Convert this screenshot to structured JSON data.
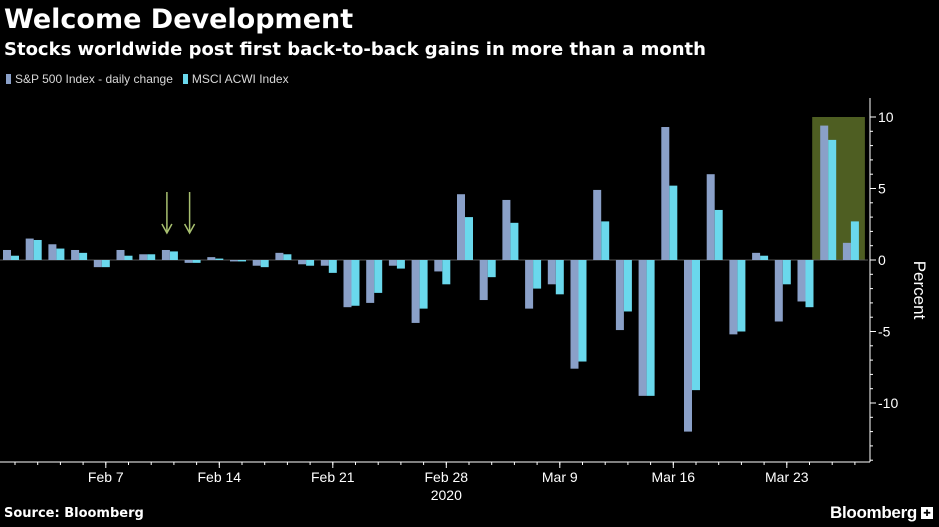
{
  "header": {
    "title": "Welcome Development",
    "subtitle": "Stocks worldwide post first back-to-back gains in more than a month"
  },
  "footer": {
    "source": "Source: Bloomberg",
    "brand": "Bloomberg"
  },
  "colors": {
    "background": "#000000",
    "sp500": "#8aa0c8",
    "msci": "#6ad8ec",
    "highlight": "#4e5e22",
    "arrow": "#a8c070",
    "axis": "#ffffff",
    "grid": "#333333"
  },
  "chart_data": {
    "type": "bar",
    "ylabel": "Percent",
    "ylim": [
      -14,
      10.5
    ],
    "yticks": [
      10,
      5,
      0,
      -5,
      -10
    ],
    "xtick_labels": [
      {
        "label": "Feb 7",
        "index": 4
      },
      {
        "label": "Feb 14",
        "index": 9
      },
      {
        "label": "Feb 21",
        "index": 14
      },
      {
        "label": "Feb 28",
        "index": 19
      },
      {
        "label": "Mar 9",
        "index": 24
      },
      {
        "label": "Mar 16",
        "index": 29
      },
      {
        "label": "Mar 23",
        "index": 34
      }
    ],
    "xyear": {
      "label": "2020",
      "index": 19
    },
    "series": [
      {
        "name": "S&P 500 Index - daily change",
        "values": [
          0.7,
          1.5,
          1.1,
          0.7,
          -0.5,
          0.7,
          0.4,
          0.7,
          -0.2,
          0.2,
          -0.1,
          -0.4,
          0.5,
          -0.3,
          -0.4,
          -3.3,
          -3.0,
          -0.4,
          -4.4,
          -0.8,
          4.6,
          -2.8,
          4.2,
          -3.4,
          -1.7,
          -7.6,
          4.9,
          -4.9,
          -9.5,
          9.3,
          -12.0,
          6.0,
          -5.2,
          0.5,
          -4.3,
          -2.9,
          9.4,
          1.2
        ]
      },
      {
        "name": "MSCI ACWI Index",
        "values": [
          0.3,
          1.4,
          0.8,
          0.5,
          -0.5,
          0.3,
          0.4,
          0.6,
          -0.2,
          0.1,
          -0.1,
          -0.5,
          0.4,
          -0.4,
          -0.9,
          -3.2,
          -2.3,
          -0.6,
          -3.4,
          -1.7,
          3.0,
          -1.2,
          2.6,
          -2.0,
          -2.4,
          -7.1,
          2.7,
          -3.6,
          -9.5,
          5.2,
          -9.1,
          3.5,
          -5.0,
          0.3,
          -1.7,
          -3.3,
          8.4,
          2.7
        ]
      }
    ],
    "highlight_indices": [
      36,
      37
    ],
    "arrow_indices": [
      7,
      8
    ],
    "grid": false,
    "legend_position": "top-left"
  }
}
